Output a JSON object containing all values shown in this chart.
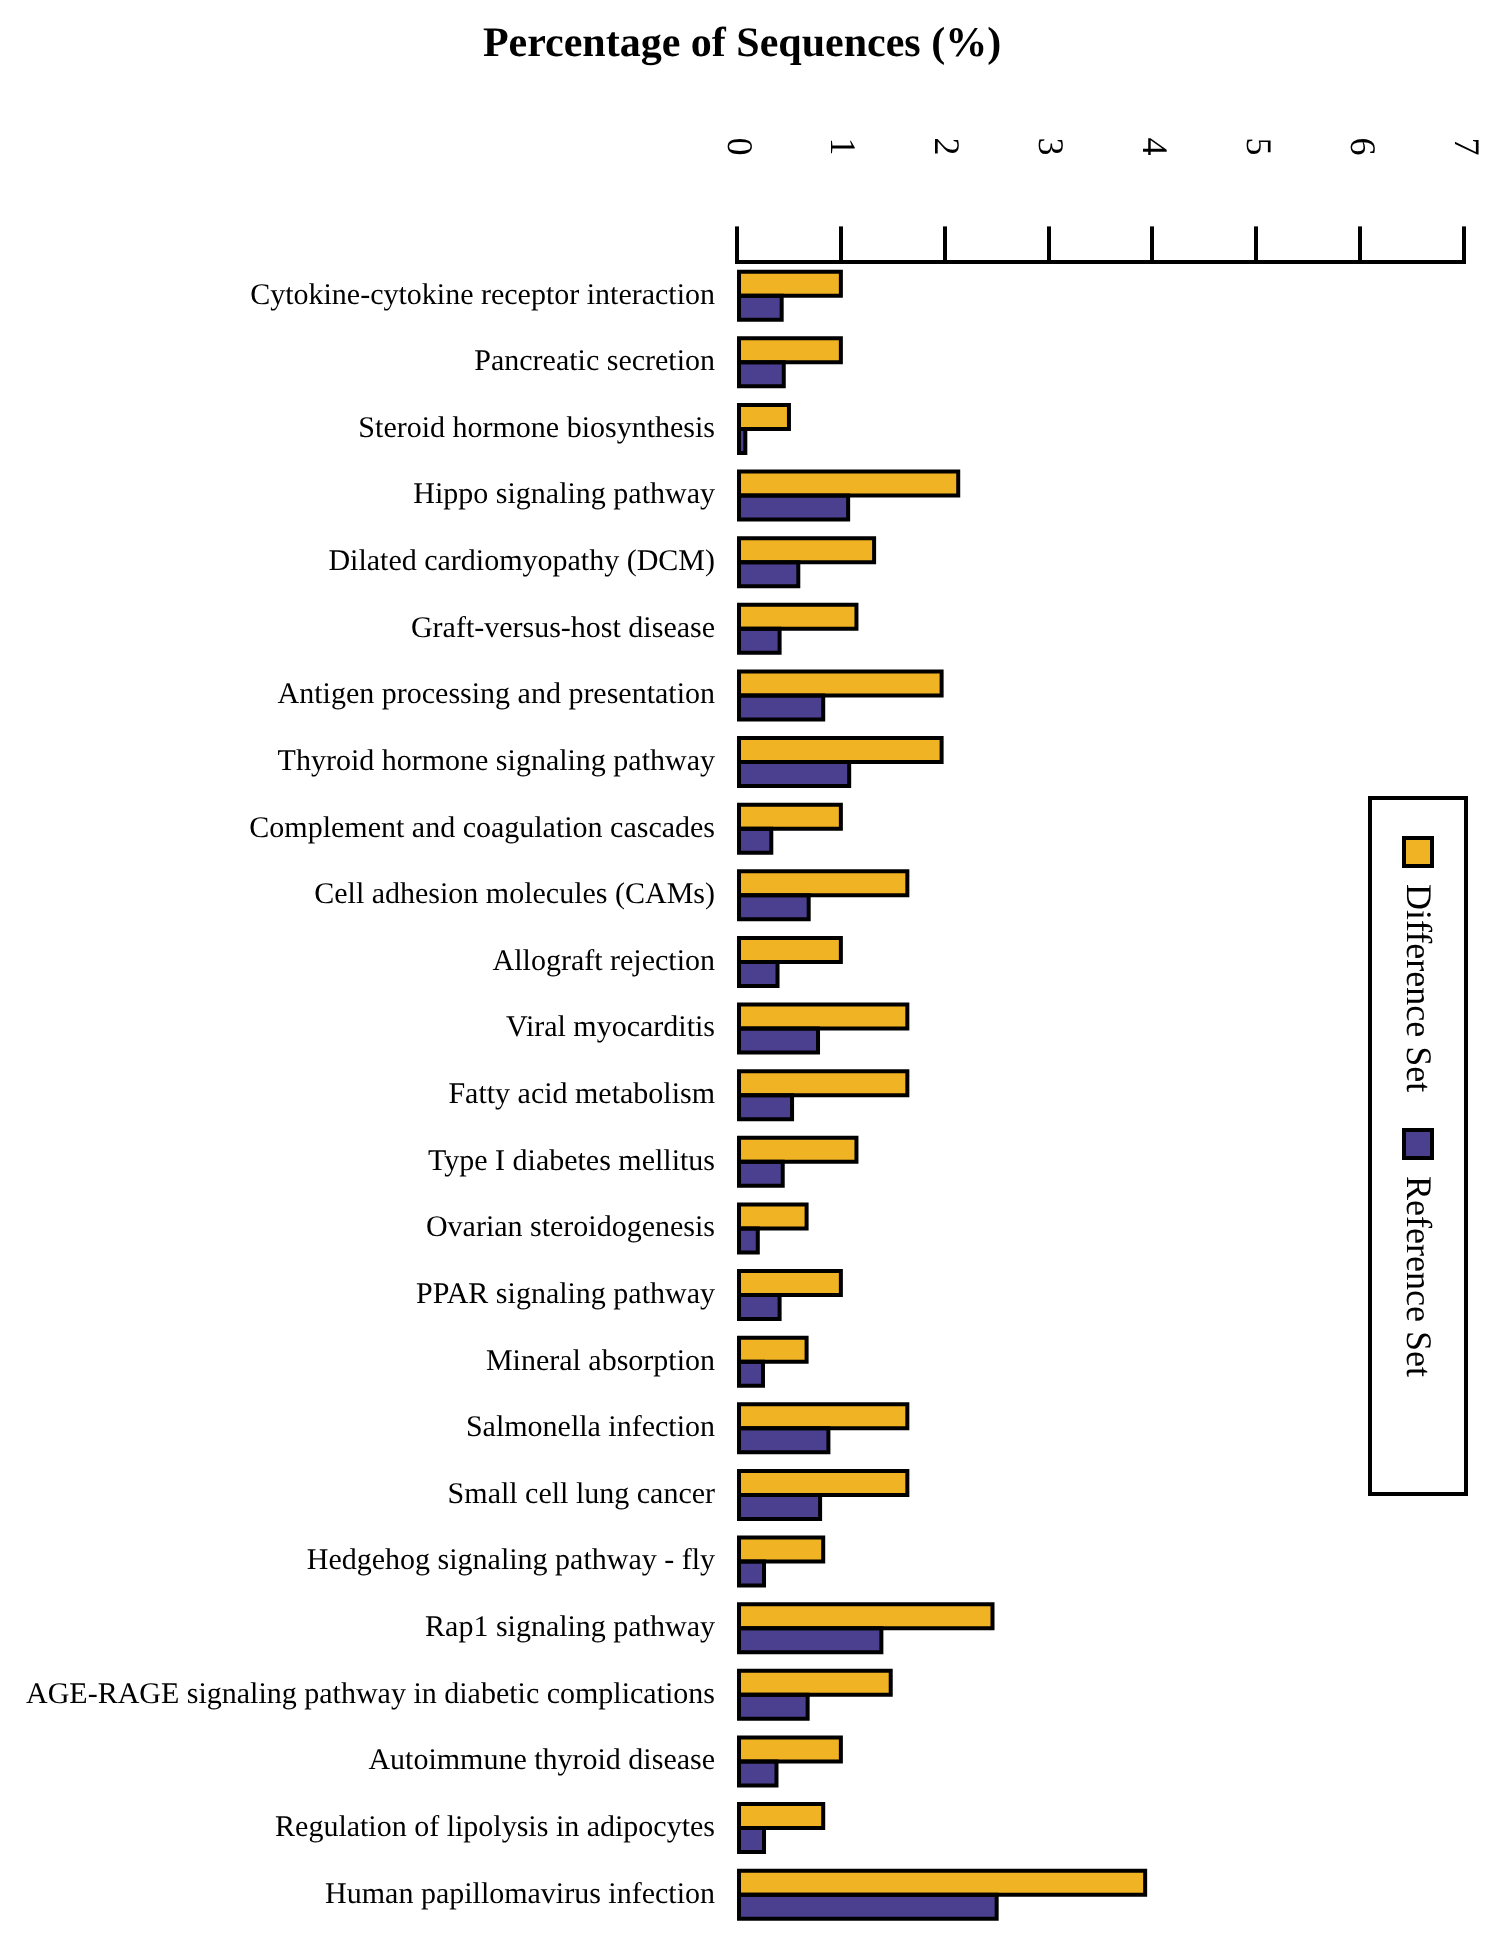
{
  "chart_data": {
    "type": "bar",
    "orientation": "horizontal",
    "title": "Percentage of Sequences (%)",
    "categories": [
      "Cytokine-cytokine receptor interaction",
      "Pancreatic secretion",
      "Steroid hormone biosynthesis",
      "Hippo signaling pathway",
      "Dilated cardiomyopathy (DCM)",
      "Graft-versus-host disease",
      "Antigen processing and presentation",
      "Thyroid hormone signaling pathway",
      "Complement and coagulation cascades",
      "Cell adhesion molecules (CAMs)",
      "Allograft rejection",
      "Viral myocarditis",
      "Fatty acid metabolism",
      "Type I diabetes mellitus",
      "Ovarian steroidogenesis",
      "PPAR signaling pathway",
      "Mineral absorption",
      "Salmonella infection",
      "Small cell lung cancer",
      "Hedgehog signaling pathway - fly",
      "Rap1 signaling pathway",
      "AGE-RAGE signaling pathway in diabetic complications",
      "Autoimmune thyroid disease",
      "Regulation of lipolysis in adipocytes",
      "Human papillomavirus infection"
    ],
    "series": [
      {
        "name": "Difference Set",
        "color": "#f0b323",
        "values": [
          1.0,
          1.0,
          0.5,
          2.13,
          1.32,
          1.15,
          1.97,
          1.97,
          1.0,
          1.64,
          1.0,
          1.64,
          1.64,
          1.15,
          0.67,
          1.0,
          0.67,
          1.64,
          1.64,
          0.83,
          2.46,
          1.48,
          1.0,
          0.83,
          3.93
        ]
      },
      {
        "name": "Reference Set",
        "color": "#4b3f8f",
        "values": [
          0.43,
          0.45,
          0.08,
          1.07,
          0.59,
          0.41,
          0.83,
          1.08,
          0.33,
          0.69,
          0.39,
          0.78,
          0.53,
          0.44,
          0.2,
          0.41,
          0.25,
          0.88,
          0.8,
          0.26,
          1.39,
          0.68,
          0.38,
          0.26,
          2.5
        ]
      }
    ],
    "xlim": [
      0,
      7
    ],
    "xticks": [
      0,
      1,
      2,
      3,
      4,
      5,
      6,
      7
    ],
    "grid": false,
    "legend": "right"
  }
}
